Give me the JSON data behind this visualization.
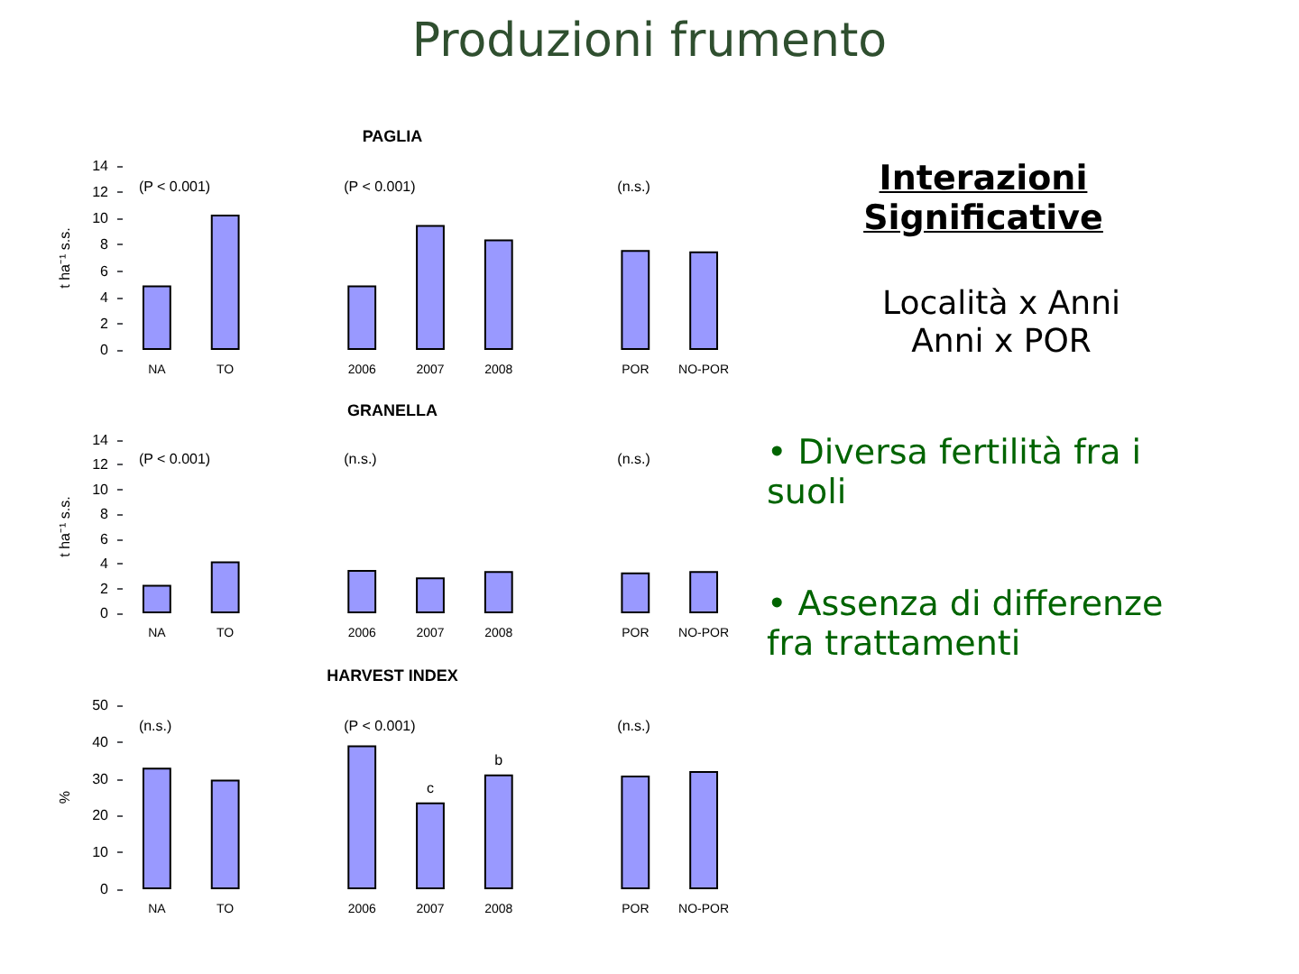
{
  "chart_data": [
    {
      "type": "other",
      "title": "Produzioni frumento"
    },
    {
      "type": "bar",
      "title": "PAGLIA",
      "ylabel": "t ha⁻¹ s.s.",
      "categories": [
        "NA",
        "TO",
        null,
        "2006",
        "2007",
        "2008",
        null,
        "POR",
        "NO-POR"
      ],
      "values": [
        4.9,
        10.3,
        null,
        4.9,
        9.5,
        8.4,
        null,
        7.6,
        7.5
      ],
      "color": "#9999ff",
      "ylim": [
        0,
        14
      ],
      "yticks": [
        0,
        2,
        4,
        6,
        8,
        10,
        12,
        14
      ],
      "annotations": [
        "(P < 0.001)",
        "(P < 0.001)",
        "(n.s.)"
      ]
    },
    {
      "type": "bar",
      "title": "GRANELLA",
      "ylabel": "t ha⁻¹ s.s.",
      "categories": [
        "NA",
        "TO",
        null,
        "2006",
        "2007",
        "2008",
        null,
        "POR",
        "NO-POR"
      ],
      "values": [
        2.3,
        4.2,
        null,
        3.5,
        2.9,
        3.4,
        null,
        3.3,
        3.4
      ],
      "color": "#9999ff",
      "ylim": [
        0,
        14
      ],
      "yticks": [
        0,
        2,
        4,
        6,
        8,
        10,
        12,
        14
      ],
      "annotations": [
        "(P < 0.001)",
        "(n.s.)",
        "(n.s.)"
      ]
    },
    {
      "type": "bar",
      "title": "HARVEST INDEX",
      "ylabel": "%",
      "categories": [
        "NA",
        "TO",
        null,
        "2006",
        "2007",
        "2008",
        null,
        "POR",
        "NO-POR"
      ],
      "values": [
        33,
        29.8,
        null,
        39.1,
        23.6,
        31.2,
        null,
        30.9,
        32.1
      ],
      "color": "#9999ff",
      "ylim": [
        0,
        50
      ],
      "yticks": [
        0,
        10,
        20,
        30,
        40,
        50
      ],
      "annotations": [
        "(n.s.)",
        "(P < 0.001)",
        "(n.s.)",
        {
          "text": "c",
          "x": "2007",
          "y": 23.6
        },
        {
          "text": "b",
          "x": "2008",
          "y": 31.2
        }
      ]
    },
    {
      "type": "other",
      "title": "Interazioni Significative",
      "annotations": [
        "Località x Anni",
        "Anni x POR",
        "• Diversa fertilità fra i suoli",
        "• Assenza di differenze fra trattamenti"
      ]
    }
  ]
}
